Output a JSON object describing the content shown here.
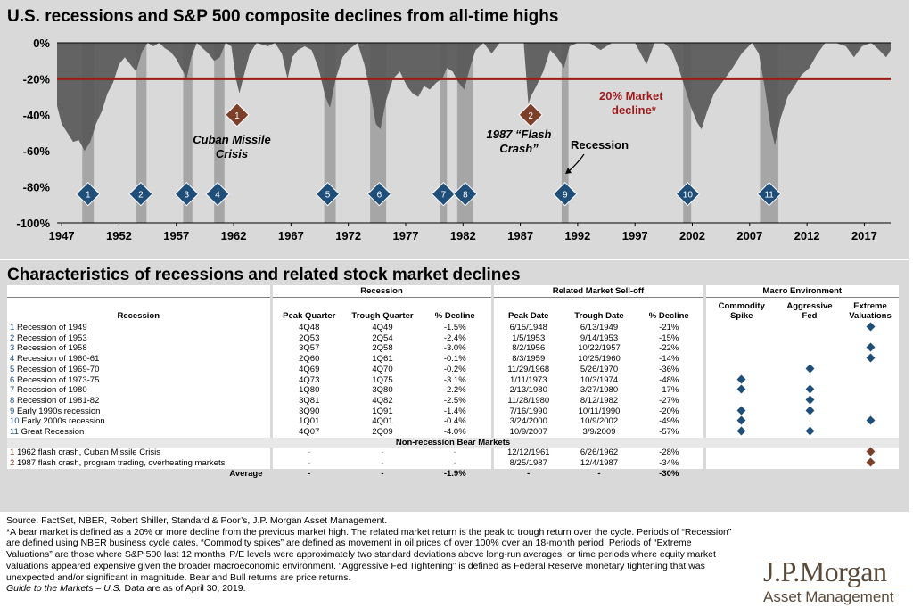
{
  "top": {
    "title": "U.S. recessions and S&P 500 composite declines from all-time highs"
  },
  "chart_data": {
    "type": "area",
    "title": "U.S. recessions and S&P 500 composite declines from all-time highs",
    "y_ticks": [
      "0%",
      "-20%",
      "-40%",
      "-60%",
      "-80%",
      "-100%"
    ],
    "ylim": [
      -100,
      0
    ],
    "x_ticks": [
      "1947",
      "1952",
      "1957",
      "1962",
      "1967",
      "1972",
      "1977",
      "1982",
      "1987",
      "1992",
      "1997",
      "2002",
      "2007",
      "2012",
      "2017"
    ],
    "xlim": [
      1946.6,
      2019.3
    ],
    "threshold": {
      "value": -20,
      "label_line1": "20% Market",
      "label_line2": "decline*",
      "color": "#9b1b1b"
    },
    "series": [
      {
        "values_x": [
          1946.6,
          1947.0,
          1947.5,
          1948.0,
          1948.5,
          1949.0,
          1949.5,
          1950.0,
          1950.5,
          1951.0,
          1951.5,
          1952.0,
          1952.5,
          1953.0,
          1953.5,
          1954.0,
          1954.5,
          1955.0,
          1955.5,
          1956.0,
          1956.5,
          1957.0,
          1957.5,
          1957.9,
          1958.3,
          1958.8,
          1959.3,
          1959.8,
          1960.3,
          1960.8,
          1961.3,
          1961.8,
          1962.2,
          1962.5,
          1962.9,
          1963.4,
          1964.0,
          1965.0,
          1965.6,
          1966.2,
          1966.7,
          1967.1,
          1967.6,
          1968.2,
          1968.8,
          1969.4,
          1970.0,
          1970.4,
          1970.9,
          1971.5,
          1972.0,
          1972.8,
          1973.4,
          1974.0,
          1974.4,
          1974.8,
          1975.3,
          1975.9,
          1976.5,
          1977.1,
          1977.6,
          1978.1,
          1978.6,
          1979.1,
          1979.7,
          1980.2,
          1980.6,
          1981.1,
          1981.6,
          1982.1,
          1982.6,
          1983.1,
          1983.8,
          1984.5,
          1985.2,
          1985.9,
          1986.6,
          1987.3,
          1987.7,
          1987.9,
          1988.4,
          1989.0,
          1989.6,
          1990.2,
          1990.8,
          1991.3,
          1992.0,
          1993.0,
          1994.0,
          1995.0,
          1996.0,
          1997.0,
          1998.0,
          1998.7,
          1999.5,
          2000.2,
          2000.8,
          2001.3,
          2001.9,
          2002.4,
          2002.8,
          2003.3,
          2003.9,
          2004.6,
          2005.4,
          2006.3,
          2007.2,
          2007.8,
          2008.3,
          2008.8,
          2009.2,
          2009.7,
          2010.3,
          2010.9,
          2011.5,
          2012.2,
          2012.9,
          2013.6,
          2014.5,
          2015.4,
          2016.1,
          2016.8,
          2017.6,
          2018.3,
          2018.9,
          2019.3
        ],
        "values_y": [
          -35,
          -45,
          -50,
          -55,
          -54,
          -60,
          -55,
          -45,
          -38,
          -28,
          -22,
          -12,
          -8,
          -12,
          -16,
          -5,
          0,
          -2,
          0,
          -3,
          -5,
          -9,
          -15,
          -20,
          -8,
          0,
          -3,
          -6,
          -10,
          -8,
          0,
          -2,
          -20,
          -28,
          -18,
          -6,
          0,
          -2,
          0,
          -6,
          -20,
          -8,
          -4,
          -2,
          -4,
          -14,
          -30,
          -36,
          -20,
          -8,
          -4,
          0,
          -12,
          -30,
          -45,
          -48,
          -32,
          -20,
          -16,
          -24,
          -28,
          -30,
          -24,
          -26,
          -22,
          -20,
          -14,
          -16,
          -22,
          -26,
          -14,
          -4,
          0,
          -6,
          0,
          0,
          0,
          0,
          -34,
          -30,
          -24,
          -16,
          -4,
          -8,
          -14,
          -2,
          0,
          0,
          -4,
          0,
          0,
          0,
          -12,
          0,
          0,
          -4,
          -14,
          -24,
          -36,
          -44,
          -48,
          -38,
          -28,
          -22,
          -15,
          -6,
          0,
          -6,
          -24,
          -46,
          -57,
          -42,
          -30,
          -24,
          -18,
          -14,
          -6,
          0,
          0,
          -2,
          -8,
          -2,
          0,
          -4,
          -8,
          -4
        ]
      }
    ],
    "recessions": [
      {
        "id": "1",
        "start": 1948.8,
        "end": 1949.8
      },
      {
        "id": "2",
        "start": 1953.5,
        "end": 1954.4
      },
      {
        "id": "3",
        "start": 1957.6,
        "end": 1958.4
      },
      {
        "id": "4",
        "start": 1960.3,
        "end": 1961.2
      },
      {
        "id": "5",
        "start": 1969.9,
        "end": 1970.9
      },
      {
        "id": "6",
        "start": 1973.9,
        "end": 1975.3
      },
      {
        "id": "7",
        "start": 1980.0,
        "end": 1980.6
      },
      {
        "id": "8",
        "start": 1981.5,
        "end": 1982.9
      },
      {
        "id": "9",
        "start": 1990.6,
        "end": 1991.2
      },
      {
        "id": "10",
        "start": 2001.2,
        "end": 2001.9
      },
      {
        "id": "11",
        "start": 2007.9,
        "end": 2009.5
      }
    ],
    "recession_markers": [
      {
        "label": "1",
        "x": 1949.3
      },
      {
        "label": "2",
        "x": 1953.9
      },
      {
        "label": "3",
        "x": 1957.9
      },
      {
        "label": "4",
        "x": 1960.6
      },
      {
        "label": "5",
        "x": 1970.2
      },
      {
        "label": "6",
        "x": 1974.7
      },
      {
        "label": "7",
        "x": 1980.3
      },
      {
        "label": "8",
        "x": 1982.2
      },
      {
        "label": "9",
        "x": 1990.9
      },
      {
        "label": "10",
        "x": 2001.6
      },
      {
        "label": "11",
        "x": 2008.7
      }
    ],
    "flash_markers": [
      {
        "label": "1",
        "x": 1962.3,
        "annot_line1": "Cuban Missile",
        "annot_line2": "Crisis"
      },
      {
        "label": "2",
        "x": 1987.9,
        "annot_line1": "1987 “Flash",
        "annot_line2": "Crash”"
      }
    ],
    "recession_annotation": "Recession",
    "colors": {
      "area": "#595959",
      "band": "#a6a6a6",
      "recession_marker": "#1f4e79",
      "flash_marker": "#7b3f2a",
      "threshold": "#9b1b1b"
    }
  },
  "bottom": {
    "title": "Characteristics of recessions and related stock market declines"
  },
  "table": {
    "group_headers": {
      "recession": "Recession",
      "selloff": "Related Market Sell-off",
      "macro": "Macro Environment"
    },
    "columns": {
      "name": "Recession",
      "peak_q": "Peak Quarter",
      "trough_q": "Trough Quarter",
      "pct1": "% Decline",
      "peak_d": "Peak Date",
      "trough_d": "Trough Date",
      "pct2": "% Decline",
      "commodity_1": "Commodity",
      "commodity_2": "Spike",
      "fed_1": "Aggressive",
      "fed_2": "Fed",
      "ext_1": "Extreme",
      "ext_2": "Valuations"
    },
    "rows": [
      {
        "num": "1",
        "name": "Recession of 1949",
        "peak_q": "4Q48",
        "trough_q": "4Q49",
        "pct1": "-1.5%",
        "peak_d": "6/15/1948",
        "trough_d": "6/13/1949",
        "pct2": "-21%",
        "commodity": false,
        "fed": false,
        "extreme": true
      },
      {
        "num": "2",
        "name": "Recession of 1953",
        "peak_q": "2Q53",
        "trough_q": "2Q54",
        "pct1": "-2.4%",
        "peak_d": "1/5/1953",
        "trough_d": "9/14/1953",
        "pct2": "-15%",
        "commodity": false,
        "fed": false,
        "extreme": false
      },
      {
        "num": "3",
        "name": "Recession of 1958",
        "peak_q": "3Q57",
        "trough_q": "2Q58",
        "pct1": "-3.0%",
        "peak_d": "8/2/1956",
        "trough_d": "10/22/1957",
        "pct2": "-22%",
        "commodity": false,
        "fed": false,
        "extreme": true
      },
      {
        "num": "4",
        "name": "Recession of 1960-61",
        "peak_q": "2Q60",
        "trough_q": "1Q61",
        "pct1": "-0.1%",
        "peak_d": "8/3/1959",
        "trough_d": "10/25/1960",
        "pct2": "-14%",
        "commodity": false,
        "fed": false,
        "extreme": true
      },
      {
        "num": "5",
        "name": "Recession of 1969-70",
        "peak_q": "4Q69",
        "trough_q": "4Q70",
        "pct1": "-0.2%",
        "peak_d": "11/29/1968",
        "trough_d": "5/26/1970",
        "pct2": "-36%",
        "commodity": false,
        "fed": true,
        "extreme": false
      },
      {
        "num": "6",
        "name": "Recession of 1973-75",
        "peak_q": "4Q73",
        "trough_q": "1Q75",
        "pct1": "-3.1%",
        "peak_d": "1/11/1973",
        "trough_d": "10/3/1974",
        "pct2": "-48%",
        "commodity": true,
        "fed": false,
        "extreme": false
      },
      {
        "num": "7",
        "name": "Recession of 1980",
        "peak_q": "1Q80",
        "trough_q": "3Q80",
        "pct1": "-2.2%",
        "peak_d": "2/13/1980",
        "trough_d": "3/27/1980",
        "pct2": "-17%",
        "commodity": true,
        "fed": true,
        "extreme": false
      },
      {
        "num": "8",
        "name": "Recession of 1981-82",
        "peak_q": "3Q81",
        "trough_q": "4Q82",
        "pct1": "-2.5%",
        "peak_d": "11/28/1980",
        "trough_d": "8/12/1982",
        "pct2": "-27%",
        "commodity": false,
        "fed": true,
        "extreme": false
      },
      {
        "num": "9",
        "name": "Early 1990s recession",
        "peak_q": "3Q90",
        "trough_q": "1Q91",
        "pct1": "-1.4%",
        "peak_d": "7/16/1990",
        "trough_d": "10/11/1990",
        "pct2": "-20%",
        "commodity": true,
        "fed": true,
        "extreme": false
      },
      {
        "num": "10",
        "name": "Early 2000s recession",
        "peak_q": "1Q01",
        "trough_q": "4Q01",
        "pct1": "-0.4%",
        "peak_d": "3/24/2000",
        "trough_d": "10/9/2002",
        "pct2": "-49%",
        "commodity": true,
        "fed": false,
        "extreme": true
      },
      {
        "num": "11",
        "name": "Great Recession",
        "peak_q": "4Q07",
        "trough_q": "2Q09",
        "pct1": "-4.0%",
        "peak_d": "10/9/2007",
        "trough_d": "3/9/2009",
        "pct2": "-57%",
        "commodity": true,
        "fed": true,
        "extreme": false
      }
    ],
    "subheader": "Non-recession Bear Markets",
    "bear_rows": [
      {
        "num": "1",
        "name": "1962 flash crash, Cuban Missile Crisis",
        "peak_q": "-",
        "trough_q": "-",
        "pct1": "-",
        "peak_d": "12/12/1961",
        "trough_d": "6/26/1962",
        "pct2": "-28%",
        "extreme": true
      },
      {
        "num": "2",
        "name": "1987 flash crash, program trading, overheating markets",
        "peak_q": "-",
        "trough_q": "-",
        "pct1": "-",
        "peak_d": "8/25/1987",
        "trough_d": "12/4/1987",
        "pct2": "-34%",
        "extreme": true
      }
    ],
    "average": {
      "label": "Average",
      "peak_q": "-",
      "trough_q": "-",
      "pct1": "-1.9%",
      "peak_d": "-",
      "trough_d": "-",
      "pct2": "-30%"
    }
  },
  "footnotes": {
    "source": "Source: FactSet, NBER, Robert Shiller, Standard & Poor’s, J.P. Morgan Asset Management.",
    "body": "*A bear market is defined as a 20% or more decline from the previous market high. The related market return is the peak to trough return over the cycle. Periods of “Recession” are defined using NBER business cycle dates. “Commodity spikes” are defined as movement in oil prices of over 100% over an 18-month period. Periods of “Extreme Valuations” are those where S&P 500 last 12 months’ P/E levels were approximately two standard deviations above long-run averages, or time periods where equity market valuations appeared expensive given the broader macroeconomic environment. “Aggressive Fed Tightening” is defined as Federal Reserve monetary tightening that was unexpected and/or significant in magnitude. Bear and Bull returns are price returns.",
    "guide_italic": "Guide to the Markets – U.S.",
    "guide_rest": " Data are as of April 30, 2019."
  },
  "logo": {
    "line1": "J.P.Morgan",
    "line2": "Asset Management"
  }
}
